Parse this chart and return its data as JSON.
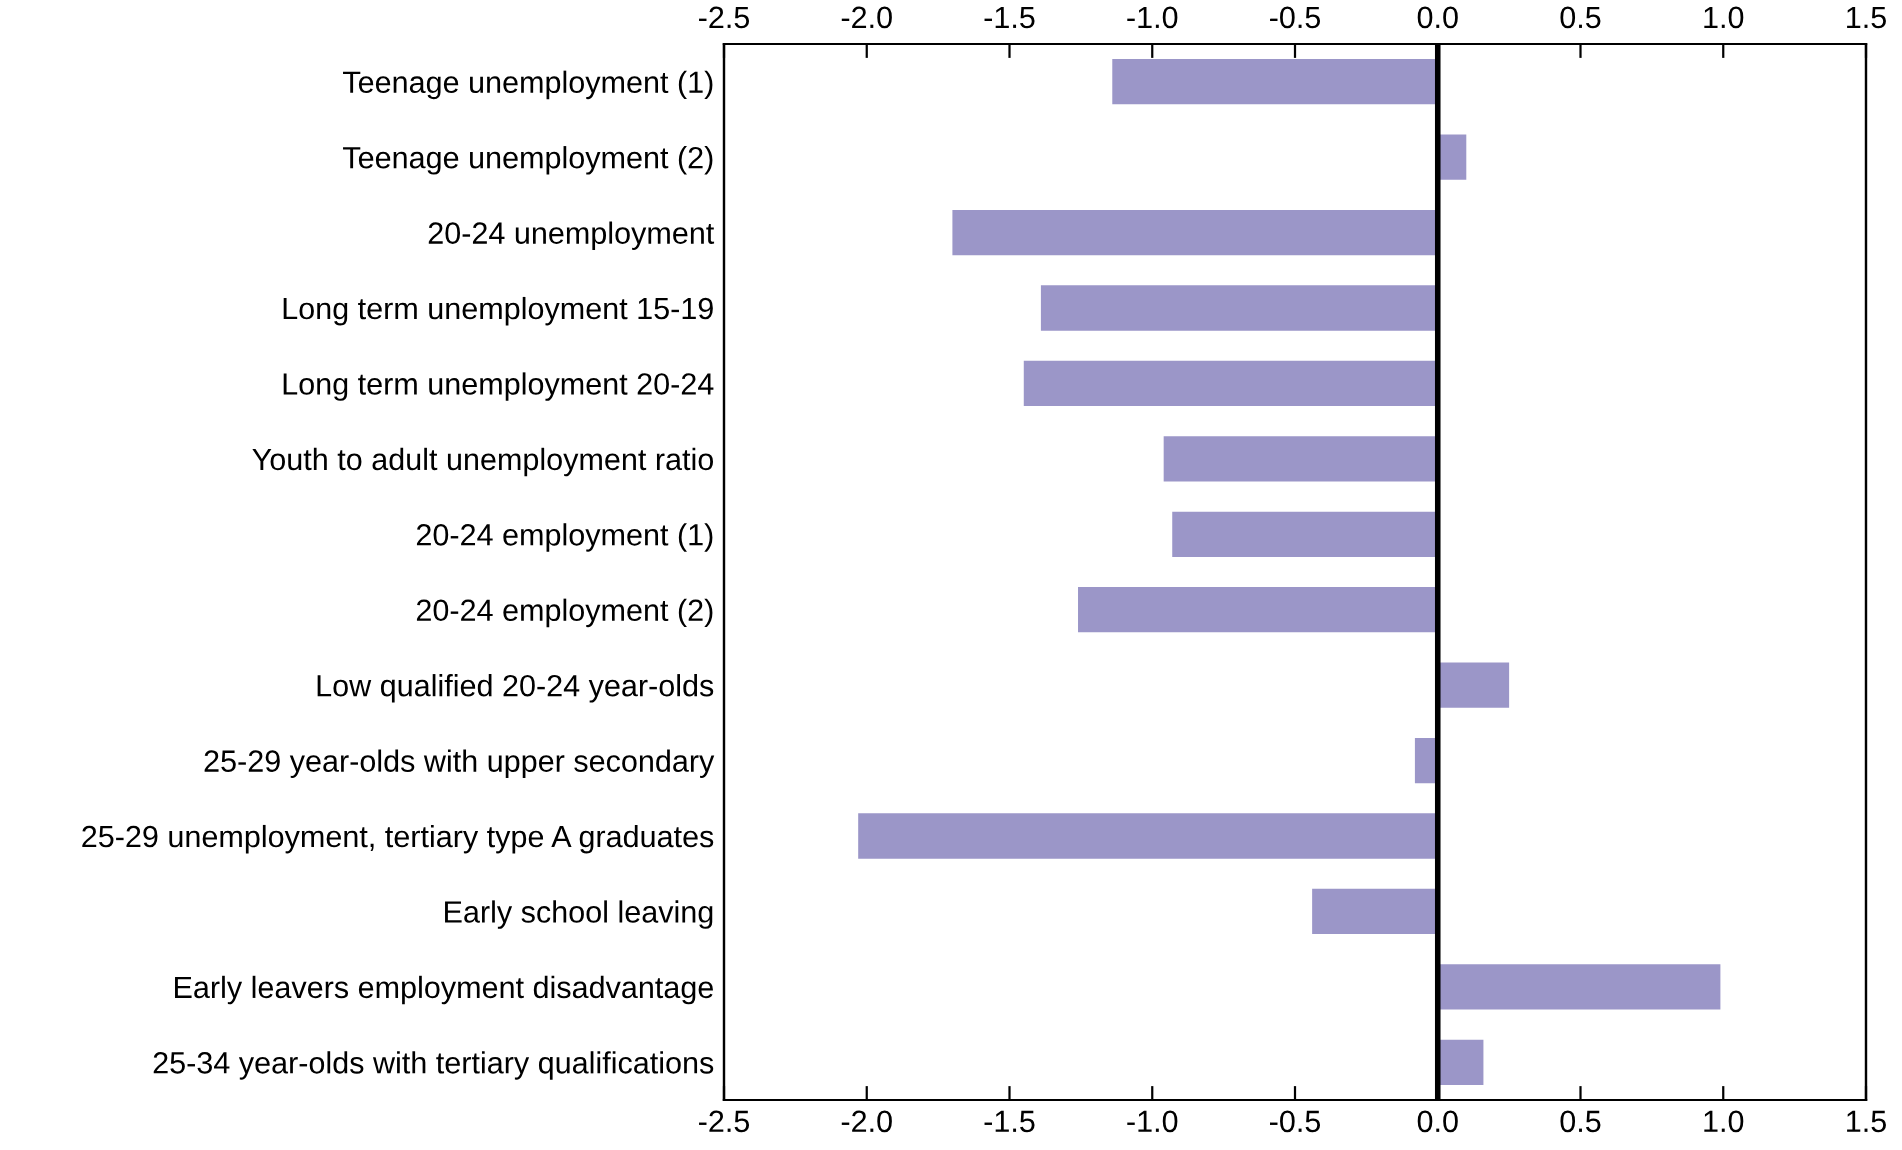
{
  "chart_data": {
    "type": "bar",
    "orientation": "horizontal",
    "categories": [
      "Teenage unemployment (1)",
      "Teenage unemployment (2)",
      "20-24 unemployment",
      "Long term unemployment 15-19",
      "Long term unemployment 20-24",
      "Youth to adult unemployment ratio",
      "20-24 employment (1)",
      "20-24 employment (2)",
      "Low qualified 20-24 year-olds",
      "25-29 year-olds with upper secondary",
      "25-29 unemployment, tertiary type A graduates",
      "Early school leaving",
      "Early leavers employment disadvantage",
      "25-34 year-olds with tertiary qualifications"
    ],
    "values": [
      -1.14,
      0.1,
      -1.7,
      -1.39,
      -1.45,
      -0.96,
      -0.93,
      -1.26,
      0.25,
      -0.08,
      -2.03,
      -0.44,
      0.99,
      0.16
    ],
    "color": "#9b96c8",
    "xlim": [
      -2.5,
      1.5
    ],
    "xticks": [
      -2.5,
      {
        "value": -2,
        "label": "-2.0"
      },
      -1.5,
      {
        "value": -1,
        "label": "-1.0"
      },
      -0.5,
      {
        "value": 0,
        "label": "0.0"
      },
      0.5,
      {
        "value": 1,
        "label": "1.0"
      },
      1.5
    ],
    "x2lim": [
      -2.5,
      1.5
    ],
    "x2ticks": [
      -2.5,
      {
        "value": -2,
        "label": "-2.0"
      },
      -1.5,
      {
        "value": -1,
        "label": "-1.0"
      },
      -0.5,
      {
        "value": 0,
        "label": "0.0"
      },
      0.5,
      {
        "value": 1,
        "label": "1.0"
      },
      1.5
    ],
    "ref_lines": [
      {
        "axis": "x",
        "value": 0,
        "color": "#000000"
      }
    ]
  }
}
